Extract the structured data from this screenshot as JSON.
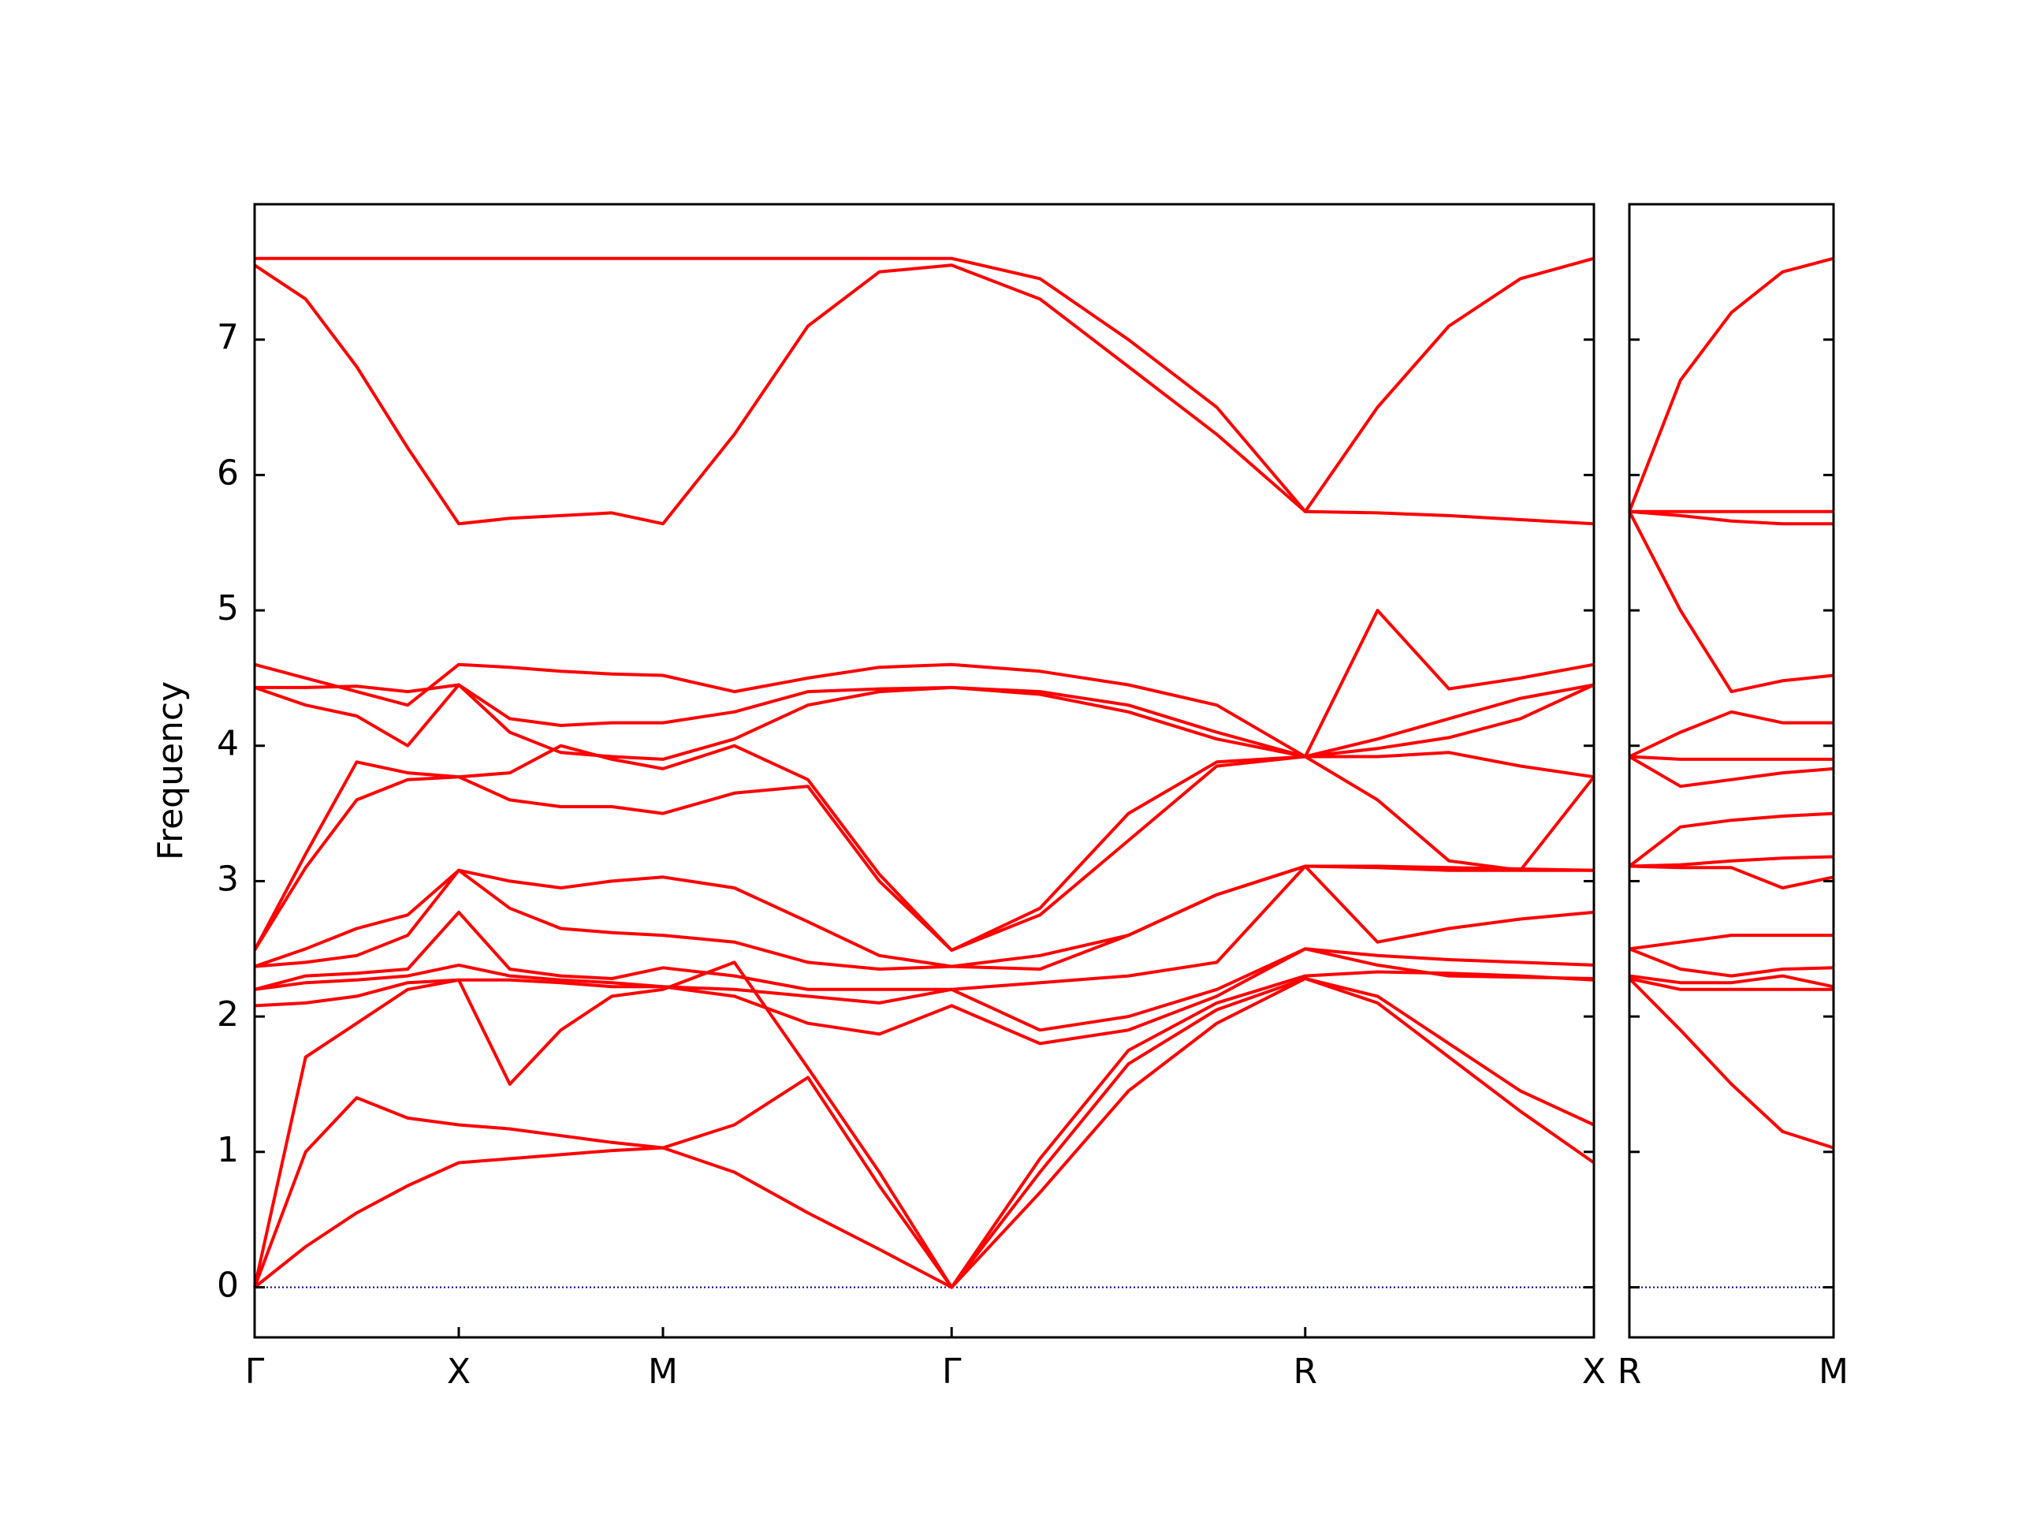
{
  "chart_data": [
    {
      "type": "line",
      "ylabel": "Frequency",
      "color": "#ff0000",
      "hline": 0,
      "hline_color": "#00008b",
      "xlim": [
        0,
        6.56
      ],
      "ylim": [
        -0.37,
        8.0
      ],
      "xticks": [
        {
          "value": 0,
          "label": "Γ"
        },
        {
          "value": 1,
          "label": "X"
        },
        {
          "value": 2,
          "label": "M"
        },
        {
          "value": 3.414,
          "label": "Γ"
        },
        {
          "value": 5.146,
          "label": "R"
        },
        {
          "value": 6.56,
          "label": "X"
        }
      ],
      "yticks": [
        0,
        1,
        2,
        3,
        4,
        5,
        6,
        7
      ],
      "ytick_labels": true,
      "x": [
        0,
        0.25,
        0.5,
        0.75,
        1,
        1.25,
        1.5,
        1.75,
        2,
        2.35,
        2.71,
        3.06,
        3.414,
        3.847,
        4.28,
        4.713,
        5.146,
        5.5,
        5.85,
        6.2,
        6.56
      ],
      "series": [
        {
          "values": [
            0,
            0.3,
            0.55,
            0.75,
            0.92,
            0.95,
            0.98,
            1.01,
            1.03,
            0.85,
            0.55,
            0.28,
            0,
            0.7,
            1.45,
            1.95,
            2.28,
            2.1,
            1.7,
            1.3,
            0.92
          ]
        },
        {
          "values": [
            0,
            1.0,
            1.4,
            1.25,
            1.2,
            1.17,
            1.12,
            1.07,
            1.03,
            1.2,
            1.55,
            0.75,
            0,
            0.85,
            1.65,
            2.05,
            2.28,
            2.15,
            1.8,
            1.45,
            1.2
          ]
        },
        {
          "values": [
            0,
            1.7,
            1.95,
            2.2,
            2.27,
            1.5,
            1.9,
            2.15,
            2.2,
            2.4,
            1.62,
            0.85,
            0,
            0.95,
            1.75,
            2.1,
            2.3,
            2.33,
            2.32,
            2.3,
            2.27
          ]
        },
        {
          "values": [
            2.08,
            2.1,
            2.15,
            2.25,
            2.27,
            2.27,
            2.25,
            2.22,
            2.22,
            2.15,
            1.95,
            1.87,
            2.08,
            1.8,
            1.9,
            2.15,
            2.5,
            2.38,
            2.3,
            2.29,
            2.28
          ]
        },
        {
          "values": [
            2.2,
            2.25,
            2.27,
            2.3,
            2.38,
            2.3,
            2.27,
            2.25,
            2.22,
            2.2,
            2.15,
            2.1,
            2.2,
            1.9,
            2.0,
            2.2,
            2.5,
            2.45,
            2.42,
            2.4,
            2.38
          ]
        },
        {
          "values": [
            2.2,
            2.3,
            2.32,
            2.35,
            2.77,
            2.35,
            2.3,
            2.28,
            2.36,
            2.3,
            2.2,
            2.2,
            2.2,
            2.25,
            2.3,
            2.4,
            3.11,
            2.55,
            2.65,
            2.72,
            2.77
          ]
        },
        {
          "values": [
            2.37,
            2.4,
            2.45,
            2.6,
            3.08,
            2.8,
            2.65,
            2.62,
            2.6,
            2.55,
            2.4,
            2.35,
            2.37,
            2.35,
            2.6,
            2.9,
            3.11,
            3.1,
            3.08,
            3.08,
            3.08
          ]
        },
        {
          "values": [
            2.37,
            2.5,
            2.65,
            2.75,
            3.08,
            3.0,
            2.95,
            3.0,
            3.03,
            2.95,
            2.7,
            2.45,
            2.37,
            2.45,
            2.6,
            2.9,
            3.11,
            3.11,
            3.1,
            3.09,
            3.08
          ]
        },
        {
          "values": [
            2.49,
            3.2,
            3.88,
            3.8,
            3.77,
            3.6,
            3.55,
            3.55,
            3.5,
            3.65,
            3.7,
            3.0,
            2.49,
            2.75,
            3.3,
            3.85,
            3.92,
            3.6,
            3.15,
            3.08,
            3.77
          ]
        },
        {
          "values": [
            2.49,
            3.1,
            3.6,
            3.75,
            3.77,
            3.8,
            4.0,
            3.9,
            3.83,
            4.0,
            3.75,
            3.05,
            2.49,
            2.8,
            3.5,
            3.88,
            3.92,
            3.92,
            3.95,
            3.85,
            3.77
          ]
        },
        {
          "values": [
            4.43,
            4.3,
            4.22,
            4.0,
            4.45,
            4.1,
            3.95,
            3.92,
            3.9,
            4.05,
            4.3,
            4.4,
            4.43,
            4.38,
            4.25,
            4.05,
            3.92,
            3.98,
            4.06,
            4.2,
            4.45
          ]
        },
        {
          "values": [
            4.43,
            4.43,
            4.44,
            4.4,
            4.45,
            4.2,
            4.15,
            4.17,
            4.17,
            4.25,
            4.4,
            4.42,
            4.43,
            4.4,
            4.3,
            4.1,
            3.92,
            4.05,
            4.2,
            4.35,
            4.45
          ]
        },
        {
          "values": [
            4.6,
            4.5,
            4.4,
            4.3,
            4.6,
            4.58,
            4.55,
            4.53,
            4.52,
            4.4,
            4.5,
            4.58,
            4.6,
            4.55,
            4.45,
            4.3,
            3.92,
            5.0,
            4.42,
            4.5,
            4.6
          ]
        },
        {
          "values": [
            7.55,
            7.3,
            6.8,
            6.2,
            5.64,
            5.68,
            5.7,
            5.72,
            5.64,
            6.3,
            7.1,
            7.5,
            7.55,
            7.3,
            6.8,
            6.3,
            5.73,
            5.72,
            5.7,
            5.67,
            5.64
          ]
        },
        {
          "values": [
            7.6,
            7.6,
            7.6,
            7.6,
            7.6,
            7.6,
            7.6,
            7.6,
            7.6,
            7.6,
            7.6,
            7.6,
            7.6,
            7.45,
            7.0,
            6.5,
            5.73,
            6.5,
            7.1,
            7.45,
            7.6
          ]
        }
      ]
    },
    {
      "type": "line",
      "color": "#ff0000",
      "hline": 0,
      "hline_color": "#00008b",
      "xlim": [
        0,
        1
      ],
      "ylim": [
        -0.37,
        8.0
      ],
      "xticks": [
        {
          "value": 0,
          "label": "R"
        },
        {
          "value": 1,
          "label": "M"
        }
      ],
      "yticks": [
        0,
        1,
        2,
        3,
        4,
        5,
        6,
        7
      ],
      "ytick_labels": false,
      "x": [
        0,
        0.25,
        0.5,
        0.75,
        1
      ],
      "series": [
        {
          "values": [
            2.28,
            1.9,
            1.5,
            1.15,
            1.03
          ]
        },
        {
          "values": [
            2.28,
            2.2,
            2.2,
            2.2,
            2.2
          ]
        },
        {
          "values": [
            2.3,
            2.25,
            2.25,
            2.3,
            2.22
          ]
        },
        {
          "values": [
            2.5,
            2.35,
            2.3,
            2.35,
            2.36
          ]
        },
        {
          "values": [
            2.5,
            2.55,
            2.6,
            2.6,
            2.6
          ]
        },
        {
          "values": [
            3.11,
            3.1,
            3.1,
            2.95,
            3.03
          ]
        },
        {
          "values": [
            3.11,
            3.12,
            3.15,
            3.17,
            3.18
          ]
        },
        {
          "values": [
            3.11,
            3.4,
            3.45,
            3.48,
            3.5
          ]
        },
        {
          "values": [
            3.92,
            3.7,
            3.75,
            3.8,
            3.83
          ]
        },
        {
          "values": [
            3.92,
            3.9,
            3.9,
            3.9,
            3.9
          ]
        },
        {
          "values": [
            3.92,
            4.1,
            4.25,
            4.17,
            4.17
          ]
        },
        {
          "values": [
            5.73,
            5.0,
            4.4,
            4.48,
            4.52
          ]
        },
        {
          "values": [
            5.73,
            5.7,
            5.66,
            5.64,
            5.64
          ]
        },
        {
          "values": [
            5.73,
            5.73,
            5.73,
            5.73,
            5.73
          ]
        },
        {
          "values": [
            5.73,
            6.7,
            7.2,
            7.5,
            7.6
          ]
        }
      ]
    }
  ]
}
